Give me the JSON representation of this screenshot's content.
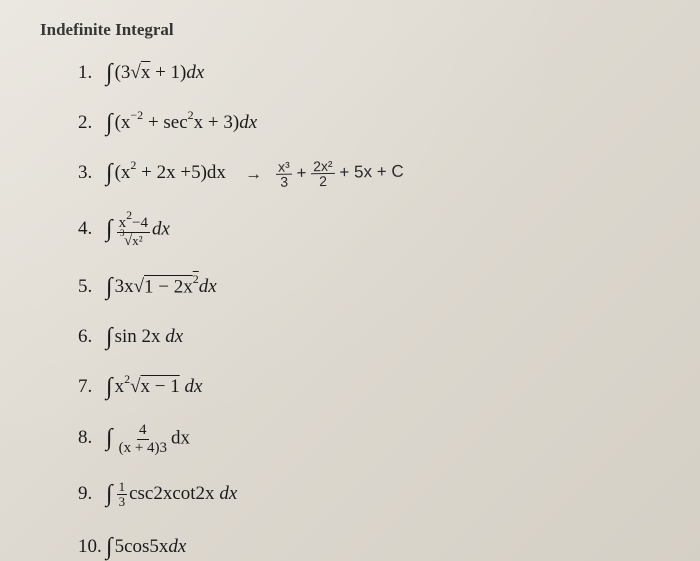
{
  "title": "Indefinite Integral",
  "problems": {
    "p1": {
      "num": "1.",
      "integrand_pre": "(3",
      "sqrt_arg": "x",
      "integrand_post": " + 1)",
      "dx": "dx"
    },
    "p2": {
      "num": "2.",
      "integrand": "(x",
      "exp1": "−2",
      "mid": " + sec",
      "exp2": "2",
      "post": "x + 3)",
      "dx": "dx"
    },
    "p3": {
      "num": "3.",
      "integrand": "(x",
      "exp1": "2",
      "post": " + 2x +5)",
      "dx": "dx",
      "hand_arrow": "→",
      "hand_t1_top": "x³",
      "hand_t1_bot": "3",
      "hand_plus1": "+",
      "hand_t2_top": "2x²",
      "hand_t2_bot": "2",
      "hand_tail": "+ 5x + C"
    },
    "p4": {
      "num": "4.",
      "frac_top_a": "x",
      "frac_top_exp": "2",
      "frac_top_b": "−4",
      "frac_bot_root": "x²",
      "dx": "dx"
    },
    "p5": {
      "num": "5.",
      "pre": "3x",
      "sqrt_a": "1 − 2x",
      "sqrt_exp": "2",
      "dx": "dx"
    },
    "p6": {
      "num": "6.",
      "integrand": "sin 2x ",
      "dx": "dx"
    },
    "p7": {
      "num": "7.",
      "pre": "x",
      "exp1": "2",
      "sqrt_arg": "x − 1",
      "dx": " dx"
    },
    "p8": {
      "num": "8.",
      "frac_top": "4",
      "frac_bot": "(x + 4)3",
      "dx": "dx"
    },
    "p9": {
      "num": "9.",
      "frac_top": "1",
      "frac_bot": "3",
      "integrand": "csc2xcot2x ",
      "dx": "dx"
    },
    "p10": {
      "num": "10.",
      "integrand": "5cos5x",
      "dx": "dx"
    }
  },
  "symbols": {
    "integral": "∫",
    "sqrt": "√"
  },
  "colors": {
    "text": "#1a1a1a",
    "background_start": "#e8e4dc",
    "background_end": "#d5d0c6"
  },
  "typography": {
    "title_fontsize": 17,
    "body_fontsize": 19,
    "font_family": "Times New Roman"
  }
}
